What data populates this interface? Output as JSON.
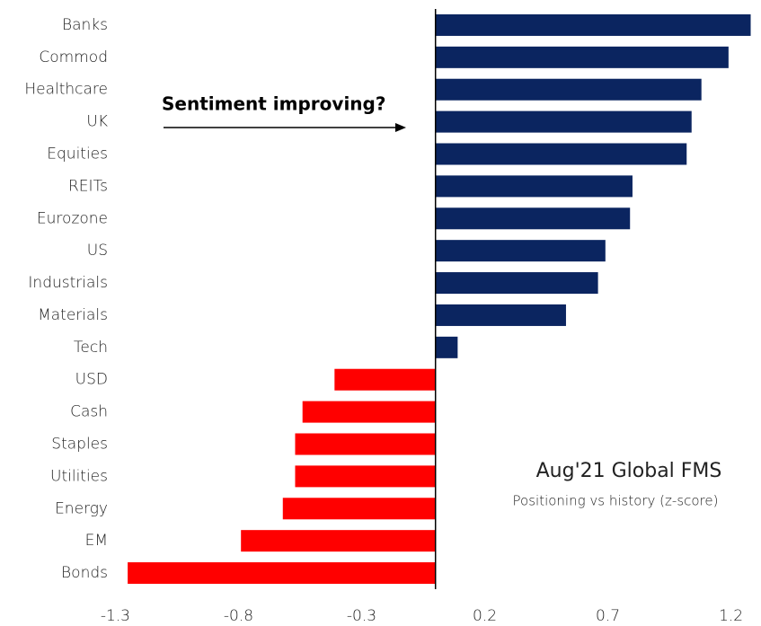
{
  "chart_data": {
    "type": "bar",
    "orientation": "horizontal",
    "title": "Aug'21 Global FMS",
    "subtitle": "Positioning vs history (z-score)",
    "annotation": "Sentiment improving?",
    "categories": [
      "Banks",
      "Commod",
      "Healthcare",
      "UK",
      "Equities",
      "REITs",
      "Eurozone",
      "US",
      "Industrials",
      "Materials",
      "Tech",
      "USD",
      "Cash",
      "Staples",
      "Utilities",
      "Energy",
      "EM",
      "Bonds"
    ],
    "values": [
      1.28,
      1.19,
      1.08,
      1.04,
      1.02,
      0.8,
      0.79,
      0.69,
      0.66,
      0.53,
      0.09,
      -0.41,
      -0.54,
      -0.57,
      -0.57,
      -0.62,
      -0.79,
      -1.25
    ],
    "positive_color": "#0b2560",
    "negative_color": "#ff0000",
    "xlim": [
      -1.4,
      1.3
    ],
    "xticks": [
      -1.3,
      -0.8,
      -0.3,
      0.2,
      0.7,
      1.2
    ],
    "grid": false
  }
}
